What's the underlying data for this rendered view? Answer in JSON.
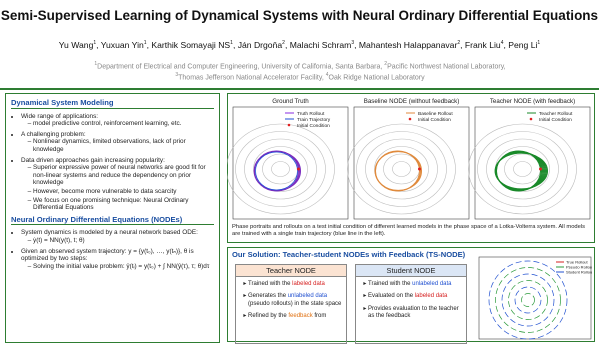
{
  "header": {
    "title": "Semi-Supervised Learning of Dynamical Systems with Neural Ordinary Differential Equations",
    "authors": [
      {
        "name": "Yu Wang",
        "sup": "1"
      },
      {
        "name": "Yuxuan Yin",
        "sup": "1"
      },
      {
        "name": "Karthik Somayaji NS",
        "sup": "1"
      },
      {
        "name": "Ján Drgoňa",
        "sup": "2"
      },
      {
        "name": "Malachi Schram",
        "sup": "3"
      },
      {
        "name": "Mahantesh Halappanavar",
        "sup": "2"
      },
      {
        "name": "Frank Liu",
        "sup": "4"
      },
      {
        "name": "Peng Li",
        "sup": "1"
      }
    ],
    "affiliations": [
      {
        "sup": "1",
        "text": "Department of Electrical and Computer Engineering, University of California, Santa Barbara, "
      },
      {
        "sup": "2",
        "text": "Pacific Northwest National Laboratory, "
      },
      {
        "sup": "3",
        "text": "Thomas Jefferson National Accelerator Facility, "
      },
      {
        "sup": "4",
        "text": "Oak Ridge National Laboratory"
      }
    ]
  },
  "left_panel": {
    "sections": [
      {
        "title": "Dynamical System Modeling",
        "bullets": [
          {
            "text": "Wide range of applications:",
            "sub": [
              "model predictive control, reinforcement learning, etc."
            ]
          },
          {
            "text": "A challenging problem:",
            "sub": [
              "Nonlinear dynamics, limited observations, lack of prior knowledge"
            ]
          },
          {
            "text": "Data driven approaches gain increasing popularity:",
            "sub": [
              "Superior expressive power of neural networks are good fit for non-linear systems and reduce the dependency on prior knowledge",
              "However, become more vulnerable to data scarcity",
              "We focus on one promising technique: Neural Ordinary Differential Equations"
            ]
          }
        ]
      },
      {
        "title": "Neural Ordinary Differential Equations (NODEs)",
        "bullets": [
          {
            "text": "System dynamics is modeled by a neural network based ODE:",
            "sub": [
              "ẏ(t) = NN(y(t), t; θ)"
            ]
          },
          {
            "text": "Given an observed system trajectory: y = {y(t₀), …, y(tₙ)}, θ is optimized by two steps:",
            "sub": [
              "Solving the initial value problem: ŷ(tᵢ) = y(t₀) + ∫ NN(ŷ(τ), τ; θ)dτ"
            ]
          }
        ]
      }
    ]
  },
  "phase_portraits": {
    "plots": [
      {
        "title": "Ground Truth",
        "legend": [
          {
            "label": "Truth Rollout",
            "color": "#8a2be2"
          },
          {
            "label": "Train Trajectory",
            "color": "#1f4fd6"
          },
          {
            "label": "Initial Condition",
            "color": "#e02020"
          }
        ],
        "color": "#7b2cbf"
      },
      {
        "title": "Baseline NODE (without feedback)",
        "legend": [
          {
            "label": "Baseline Rollout",
            "color": "#e08a3c"
          },
          {
            "label": "Initial Condition",
            "color": "#e02020"
          }
        ],
        "color": "#e08a3c"
      },
      {
        "title": "Teacher NODE (with feedback)",
        "legend": [
          {
            "label": "Teacher Rollout",
            "color": "#1a8a2a"
          },
          {
            "label": "Initial Condition",
            "color": "#e02020"
          }
        ],
        "color": "#1a8a2a"
      }
    ],
    "caption": "Phase portraits and rollouts on a test initial condition of different learned models in the phase space of a Lotka-Volterra system. All models are trained with a single train trajectory (blue line in the left)."
  },
  "solution": {
    "title": "Our Solution: Teacher-student NODEs with Feedback (TS-NODE)",
    "boxes": [
      {
        "title": "Teacher NODE",
        "items": [
          [
            {
              "text": "Trained with the "
            },
            {
              "text": "labeled data",
              "color": "#d62020"
            }
          ],
          [
            {
              "text": "Generates the "
            },
            {
              "text": "unlabeled data",
              "color": "#2050d0"
            },
            {
              "text": " (pseudo rollouts) in the state space"
            }
          ],
          [
            {
              "text": "Refined by the "
            },
            {
              "text": "feedback",
              "color": "#e07010"
            },
            {
              "text": " from"
            }
          ]
        ]
      },
      {
        "title": "Student NODE",
        "items": [
          [
            {
              "text": "Trained with the "
            },
            {
              "text": "unlabeled data",
              "color": "#2050d0"
            }
          ],
          [
            {
              "text": "Evaluated on the "
            },
            {
              "text": "labeled data",
              "color": "#d62020"
            }
          ],
          [
            {
              "text": "Provides evaluation to the teacher as the feedback"
            }
          ]
        ]
      }
    ],
    "legend": [
      {
        "label": "True Rollout",
        "color": "#d62020"
      },
      {
        "label": "Pseudo Rollouts",
        "color": "#2a9a3a"
      },
      {
        "label": "Student Rollout",
        "color": "#2050d0"
      }
    ]
  }
}
